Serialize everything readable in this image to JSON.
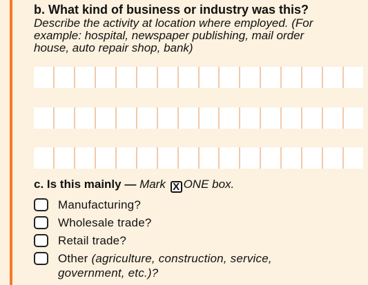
{
  "question_b": {
    "title": "b. What kind of business or industry was this?",
    "description_lines": [
      "Describe the activity at location where employed. (For",
      "example: hospital, newspaper publishing, mail order",
      "house, auto repair shop, bank)"
    ],
    "write_in_rows": 3,
    "cells_per_row": 16
  },
  "question_c": {
    "label": "c. Is this mainly —",
    "instruction_prefix": "Mark",
    "mark_glyph": "X",
    "instruction_suffix": "ONE box.",
    "options": [
      {
        "main": "Manufacturing?",
        "extra": "",
        "continuation": ""
      },
      {
        "main": "Wholesale trade?",
        "extra": "",
        "continuation": ""
      },
      {
        "main": "Retail trade?",
        "extra": "",
        "continuation": ""
      },
      {
        "main": "Other",
        "extra": " (agriculture, construction, service,",
        "continuation": "government, etc.)?"
      }
    ]
  },
  "colors": {
    "background": "#fdf1df",
    "accent_rule": "#f47a2a",
    "cell_divider": "#f2c9a8",
    "text": "#111111"
  }
}
